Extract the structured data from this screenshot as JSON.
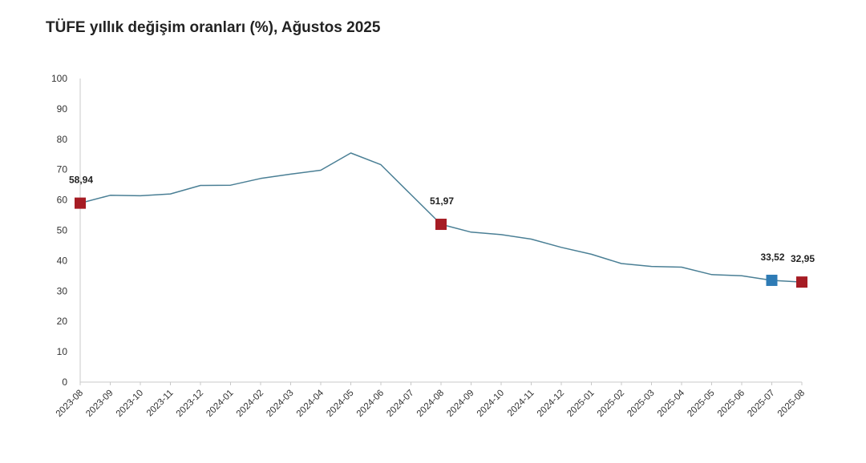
{
  "chart_data": {
    "type": "line",
    "title": "TÜFE yıllık değişim oranları (%), Ağustos 2025",
    "xlabel": "",
    "ylabel": "",
    "ylim": [
      0,
      100
    ],
    "yticks": [
      "0",
      "10",
      "20",
      "30",
      "40",
      "50",
      "60",
      "70",
      "80",
      "90",
      "100"
    ],
    "categories": [
      "2023-08",
      "2023-09",
      "2023-10",
      "2023-11",
      "2023-12",
      "2024-01",
      "2024-02",
      "2024-03",
      "2024-04",
      "2024-05",
      "2024-06",
      "2024-07",
      "2024-08",
      "2024-09",
      "2024-10",
      "2024-11",
      "2024-12",
      "2025-01",
      "2025-02",
      "2025-03",
      "2025-04",
      "2025-05",
      "2025-06",
      "2025-07",
      "2025-08"
    ],
    "series": [
      {
        "values": [
          58.94,
          61.53,
          61.36,
          61.98,
          64.77,
          64.86,
          67.07,
          68.5,
          69.8,
          75.45,
          71.6,
          61.78,
          51.97,
          49.38,
          48.58,
          47.09,
          44.38,
          42.12,
          39.05,
          38.1,
          37.86,
          35.41,
          35.05,
          33.52,
          32.95
        ],
        "color": "#4a7f95"
      }
    ],
    "highlights": [
      {
        "index": 0,
        "label": "58,94",
        "color": "#a61c24"
      },
      {
        "index": 12,
        "label": "51,97",
        "color": "#a61c24"
      },
      {
        "index": 23,
        "label": "33,52",
        "color": "#2e7bb5"
      },
      {
        "index": 24,
        "label": "32,95",
        "color": "#a61c24"
      }
    ],
    "axis_color": "#c8c8c8",
    "grid": false
  }
}
